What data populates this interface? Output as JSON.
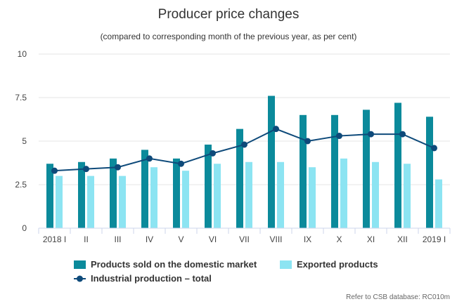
{
  "chart_data": {
    "type": "bar",
    "title": "Producer price changes",
    "subtitle": "(compared to corresponding month of the previous year, as per cent)",
    "categories": [
      "2018 I",
      "II",
      "III",
      "IV",
      "V",
      "VI",
      "VII",
      "VIII",
      "IX",
      "X",
      "XI",
      "XII",
      "2019 I"
    ],
    "series": [
      {
        "name": "Products sold on the domestic market",
        "kind": "bar",
        "color": "#0B8A9B",
        "values": [
          3.7,
          3.8,
          4.0,
          4.5,
          4.0,
          4.8,
          5.7,
          7.6,
          6.5,
          6.5,
          6.8,
          7.2,
          6.4
        ]
      },
      {
        "name": "Exported products",
        "kind": "bar",
        "color": "#8CE4F2",
        "values": [
          3.0,
          3.0,
          3.0,
          3.5,
          3.3,
          3.7,
          3.8,
          3.8,
          3.5,
          4.0,
          3.8,
          3.7,
          2.8
        ]
      },
      {
        "name": "Industrial production – total",
        "kind": "line",
        "color": "#0E4A7A",
        "values": [
          3.3,
          3.4,
          3.5,
          4.0,
          3.7,
          4.3,
          4.8,
          5.7,
          5.0,
          5.3,
          5.4,
          5.4,
          4.6
        ]
      }
    ],
    "ylim": [
      0,
      10
    ],
    "yticks": [
      0,
      2.5,
      5,
      7.5,
      10
    ],
    "ytick_labels": [
      "0",
      "2.5",
      "5",
      "7.5",
      "10"
    ],
    "grid": true,
    "legend_position": "bottom",
    "credit": "Refer to CSB database: RC010m"
  }
}
